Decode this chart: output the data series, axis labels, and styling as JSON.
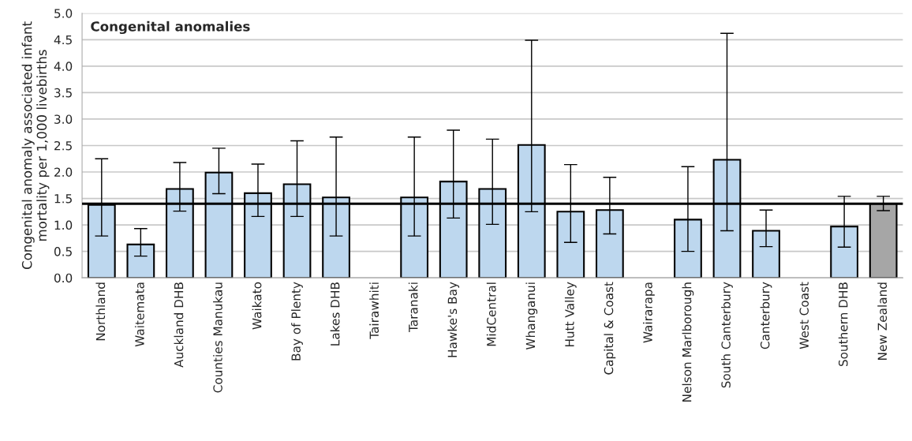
{
  "chart_data": {
    "type": "bar",
    "title": "Congenital anomalies",
    "ylabel": "Congenital anomaly associated infant mortality per 1,000 livebirths",
    "categories": [
      "Northland",
      "Waitemata",
      "Auckland DHB",
      "Counties Manukau",
      "Waikato",
      "Bay of Plenty",
      "Lakes DHB",
      "Tairawhiti",
      "Taranaki",
      "Hawke's Bay",
      "MidCentral",
      "Whanganui",
      "Hutt Valley",
      "Capital & Coast",
      "Wairarapa",
      "Nelson Marlborough",
      "South Canterbury",
      "Canterbury",
      "West Coast",
      "Southern DHB",
      "New Zealand"
    ],
    "values": [
      1.38,
      0.63,
      1.68,
      1.99,
      1.6,
      1.77,
      1.52,
      null,
      1.52,
      1.82,
      1.68,
      2.51,
      1.25,
      1.28,
      null,
      1.1,
      2.23,
      0.89,
      null,
      0.97,
      1.4
    ],
    "colors": [
      "#bdd7ee",
      "#bdd7ee",
      "#bdd7ee",
      "#bdd7ee",
      "#bdd7ee",
      "#bdd7ee",
      "#bdd7ee",
      "#bdd7ee",
      "#bdd7ee",
      "#bdd7ee",
      "#bdd7ee",
      "#bdd7ee",
      "#bdd7ee",
      "#bdd7ee",
      "#bdd7ee",
      "#bdd7ee",
      "#bdd7ee",
      "#bdd7ee",
      "#bdd7ee",
      "#bdd7ee",
      "#a6a6a6"
    ],
    "errors": [
      [
        0.79,
        2.25
      ],
      [
        0.41,
        0.93
      ],
      [
        1.26,
        2.18
      ],
      [
        1.59,
        2.45
      ],
      [
        1.16,
        2.15
      ],
      [
        1.16,
        2.59
      ],
      [
        0.79,
        2.66
      ],
      null,
      [
        0.79,
        2.66
      ],
      [
        1.13,
        2.79
      ],
      [
        1.01,
        2.62
      ],
      [
        1.25,
        4.49
      ],
      [
        0.67,
        2.14
      ],
      [
        0.83,
        1.9
      ],
      null,
      [
        0.5,
        2.1
      ],
      [
        0.89,
        4.62
      ],
      [
        0.59,
        1.28
      ],
      null,
      [
        0.58,
        1.54
      ],
      [
        1.27,
        1.54
      ]
    ],
    "ylim": [
      0,
      5.0
    ],
    "yticks": [
      {
        "value": 0,
        "label": "0.0"
      },
      {
        "value": 0.5,
        "label": "0.5"
      },
      {
        "value": 1,
        "label": "1.0"
      },
      {
        "value": 1.5,
        "label": "1.5"
      },
      {
        "value": 2,
        "label": "2.0"
      },
      {
        "value": 2.5,
        "label": "2.5"
      },
      {
        "value": 3,
        "label": "3.0"
      },
      {
        "value": 3.5,
        "label": "3.5"
      },
      {
        "value": 4,
        "label": "4.0"
      },
      {
        "value": 4.5,
        "label": "4.5"
      },
      {
        "value": 5,
        "label": "5.0"
      }
    ],
    "ref_lines": [
      {
        "axis": "y",
        "value": 1.4,
        "color": "#000000"
      }
    ],
    "grid": "y"
  }
}
